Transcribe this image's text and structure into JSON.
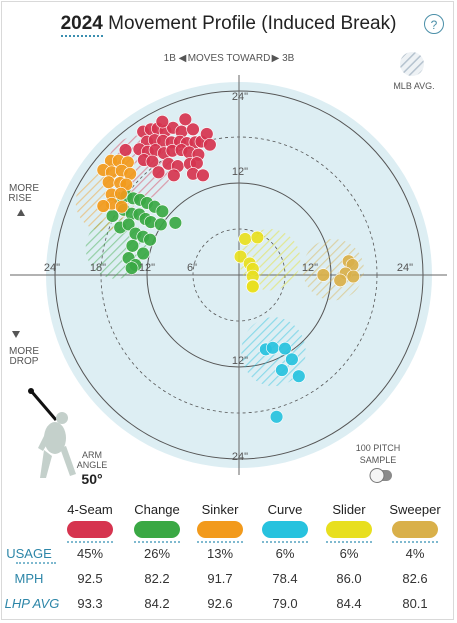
{
  "header": {
    "year": "2024",
    "title_rest": "Movement Profile (Induced Break)",
    "help_label": "?"
  },
  "legend_mlb": "MLB AVG.",
  "moves_toward": {
    "left": "1B ◀",
    "mid": "MOVES TOWARD",
    "right": "▶ 3B"
  },
  "side_labels": {
    "rise_1": "MORE",
    "rise_2": "RISE",
    "drop_1": "MORE",
    "drop_2": "DROP"
  },
  "arm_angle": {
    "label_1": "ARM",
    "label_2": "ANGLE",
    "value": "50°"
  },
  "sample_toggle": {
    "label_1": "100 PITCH",
    "label_2": "SAMPLE",
    "on": false
  },
  "colors": {
    "four_seam": "#d6344f",
    "changeup": "#3aa844",
    "sinker": "#f29a1c",
    "curve": "#27c2de",
    "slider": "#e8df1f",
    "sweeper": "#d9b04a",
    "bg_circle": "#ddeef3",
    "accent": "#2d86a8"
  },
  "stats": {
    "row_labels": [
      "USAGE",
      "MPH",
      "LHP AVG"
    ],
    "pitches": [
      {
        "name": "4-Seam",
        "color": "#d6344f",
        "usage": "45%",
        "mph": "92.5",
        "lhp_avg": "93.3"
      },
      {
        "name": "Change",
        "color": "#3aa844",
        "usage": "26%",
        "mph": "82.2",
        "lhp_avg": "84.2"
      },
      {
        "name": "Sinker",
        "color": "#f29a1c",
        "usage": "13%",
        "mph": "91.7",
        "lhp_avg": "92.6"
      },
      {
        "name": "Curve",
        "color": "#27c2de",
        "usage": "6%",
        "mph": "78.4",
        "lhp_avg": "79.0"
      },
      {
        "name": "Slider",
        "color": "#e8df1f",
        "usage": "6%",
        "mph": "86.0",
        "lhp_avg": "84.4"
      },
      {
        "name": "Sweeper",
        "color": "#d9b04a",
        "usage": "4%",
        "mph": "82.6",
        "lhp_avg": "80.1"
      }
    ]
  },
  "chart_data": {
    "type": "scatter",
    "title": "2024 Movement Profile (Induced Break)",
    "xlabel": "MOVES TOWARD",
    "ylabel": "",
    "xlim": [
      -27,
      27
    ],
    "ylim": [
      -27,
      27
    ],
    "grid": "polar rings at 6, 12, 18, 24 inches",
    "ring_labels": [
      "6\"",
      "12\"",
      "18\"",
      "24\""
    ],
    "axis_tick_labels": {
      "left": [
        "24\"",
        "18\"",
        "12\"",
        "6\""
      ],
      "right": [
        "12\"",
        "24\""
      ],
      "top": [
        "24\"",
        "12\""
      ],
      "bottom": [
        "12\"",
        "24\""
      ]
    },
    "series": [
      {
        "name": "4-Seam",
        "color": "#d6344f",
        "mlb_avg": {
          "x": -13,
          "y": 14,
          "rx": 4.2,
          "ry": 4.2
        },
        "points": [
          [
            -12.5,
            18.7
          ],
          [
            -11.5,
            19.0
          ],
          [
            -10.6,
            19.1
          ],
          [
            -9.6,
            18.8
          ],
          [
            -8.6,
            19.2
          ],
          [
            -7.5,
            18.7
          ],
          [
            -6.0,
            19.0
          ],
          [
            -12.0,
            17.4
          ],
          [
            -11.0,
            17.6
          ],
          [
            -9.9,
            17.5
          ],
          [
            -8.8,
            17.3
          ],
          [
            -7.7,
            17.4
          ],
          [
            -6.8,
            17.2
          ],
          [
            -5.7,
            17.3
          ],
          [
            -4.9,
            17.4
          ],
          [
            -13.0,
            16.4
          ],
          [
            -11.9,
            16.1
          ],
          [
            -10.9,
            16.3
          ],
          [
            -9.8,
            15.9
          ],
          [
            -8.7,
            16.2
          ],
          [
            -7.5,
            16.3
          ],
          [
            -6.5,
            16.0
          ],
          [
            -5.3,
            15.7
          ],
          [
            -12.4,
            15.0
          ],
          [
            -11.3,
            14.8
          ],
          [
            -9.2,
            14.5
          ],
          [
            -8.0,
            14.2
          ],
          [
            -6.4,
            14.5
          ],
          [
            -5.5,
            14.6
          ],
          [
            -10.5,
            13.4
          ],
          [
            -8.5,
            13.0
          ],
          [
            -6.0,
            13.2
          ],
          [
            -4.7,
            13.0
          ],
          [
            -14.8,
            16.3
          ],
          [
            -4.2,
            18.4
          ],
          [
            -3.8,
            17.0
          ],
          [
            -7.0,
            20.3
          ],
          [
            -10.0,
            20.0
          ]
        ]
      },
      {
        "name": "Change",
        "color": "#3aa844",
        "mlb_avg": {
          "x": -16,
          "y": 3.5,
          "rx": 4.0,
          "ry": 4.0
        },
        "points": [
          [
            -15.6,
            10.0
          ],
          [
            -14.7,
            10.3
          ],
          [
            -13.8,
            10.0
          ],
          [
            -12.9,
            9.8
          ],
          [
            -12.0,
            9.4
          ],
          [
            -11.0,
            8.9
          ],
          [
            -10.0,
            8.3
          ],
          [
            -15.0,
            8.5
          ],
          [
            -14.0,
            8.0
          ],
          [
            -13.0,
            7.9
          ],
          [
            -12.2,
            7.3
          ],
          [
            -11.5,
            6.9
          ],
          [
            -10.2,
            6.6
          ],
          [
            -8.3,
            6.8
          ],
          [
            -16.5,
            7.7
          ],
          [
            -15.5,
            6.2
          ],
          [
            -14.4,
            6.6
          ],
          [
            -13.5,
            5.4
          ],
          [
            -12.5,
            5.0
          ],
          [
            -11.6,
            4.6
          ],
          [
            -13.9,
            3.8
          ],
          [
            -12.5,
            2.8
          ],
          [
            -14.4,
            2.2
          ],
          [
            -13.5,
            1.3
          ],
          [
            -14.0,
            0.9
          ]
        ]
      },
      {
        "name": "Sinker",
        "color": "#f29a1c",
        "mlb_avg": {
          "x": -17.5,
          "y": 9.5,
          "rx": 3.8,
          "ry": 3.8
        },
        "points": [
          [
            -16.7,
            14.9
          ],
          [
            -15.7,
            14.9
          ],
          [
            -14.5,
            14.7
          ],
          [
            -17.7,
            13.7
          ],
          [
            -16.6,
            13.4
          ],
          [
            -15.3,
            13.6
          ],
          [
            -14.2,
            13.2
          ],
          [
            -17.0,
            12.1
          ],
          [
            -15.5,
            12.0
          ],
          [
            -14.7,
            11.8
          ],
          [
            -16.6,
            10.5
          ],
          [
            -15.4,
            10.6
          ],
          [
            -16.6,
            9.3
          ],
          [
            -15.3,
            8.9
          ],
          [
            -17.7,
            9.0
          ]
        ]
      },
      {
        "name": "Curve",
        "color": "#27c2de",
        "mlb_avg": {
          "x": 4.5,
          "y": -10,
          "rx": 4.2,
          "ry": 4.5
        },
        "points": [
          [
            3.5,
            -9.7
          ],
          [
            4.4,
            -9.5
          ],
          [
            6.0,
            -9.6
          ],
          [
            6.9,
            -11.0
          ],
          [
            5.6,
            -12.4
          ],
          [
            7.8,
            -13.2
          ],
          [
            4.9,
            -18.5
          ]
        ]
      },
      {
        "name": "Slider",
        "color": "#e8df1f",
        "mlb_avg": {
          "x": 4.0,
          "y": 2.0,
          "rx": 4.0,
          "ry": 4.0
        },
        "points": [
          [
            0.2,
            2.4
          ],
          [
            0.8,
            4.7
          ],
          [
            2.4,
            4.9
          ],
          [
            1.4,
            1.5
          ],
          [
            1.8,
            0.8
          ],
          [
            1.8,
            -0.2
          ],
          [
            1.8,
            -1.4
          ],
          [
            1.8,
            -1.5
          ]
        ]
      },
      {
        "name": "Sweeper",
        "color": "#d9b04a",
        "mlb_avg": {
          "x": 12.3,
          "y": 0.7,
          "rx": 4.0,
          "ry": 4.0
        },
        "points": [
          [
            14.3,
            1.8
          ],
          [
            14.8,
            1.3
          ],
          [
            13.9,
            0.2
          ],
          [
            11.0,
            0.0
          ],
          [
            14.9,
            -0.2
          ],
          [
            13.2,
            -0.7
          ]
        ]
      }
    ]
  }
}
